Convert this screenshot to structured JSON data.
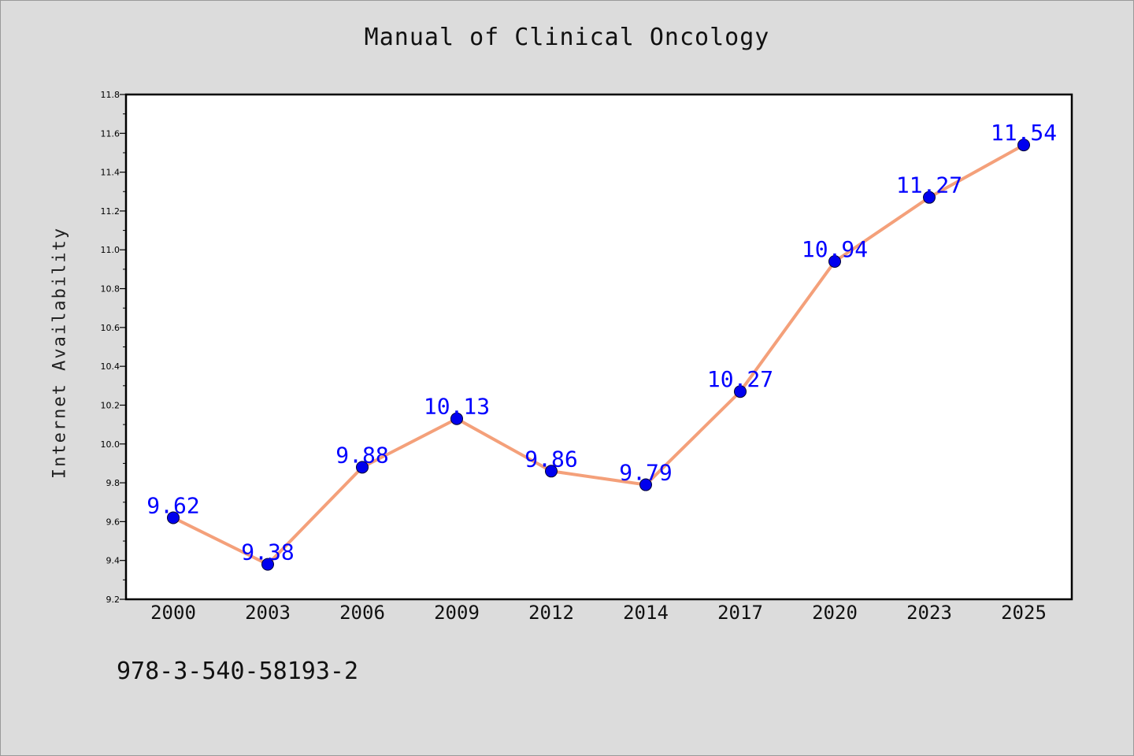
{
  "figure": {
    "title": "Manual of Clinical Oncology",
    "identifier": "978-3-540-58193-2"
  },
  "colors": {
    "background": "#dcdcdc",
    "plot_background": "#ffffff",
    "line": "#f4a07a",
    "marker": "#0000ee",
    "data_label": "#0000ff"
  },
  "chart_data": {
    "type": "line",
    "title": "Manual of Clinical Oncology",
    "xlabel": "",
    "ylabel": "Internet Availability",
    "categories": [
      "2000",
      "2003",
      "2006",
      "2009",
      "2012",
      "2014",
      "2017",
      "2020",
      "2023",
      "2025"
    ],
    "series": [
      {
        "values": [
          9.62,
          9.38,
          9.88,
          10.13,
          9.86,
          9.79,
          10.27,
          10.94,
          11.27,
          11.54
        ],
        "data_labels": [
          "9.62",
          "9.38",
          "9.88",
          "10.13",
          "9.86",
          "9.79",
          "10.27",
          "10.94",
          "11.27",
          "11.54"
        ]
      }
    ],
    "ylim": [
      9.2,
      11.8
    ],
    "y_ticks": [
      "9.2",
      "9.4",
      "9.6",
      "9.8",
      "10.0",
      "10.2",
      "10.4",
      "10.6",
      "10.8",
      "11.0",
      "11.2",
      "11.4",
      "11.6",
      "11.8"
    ],
    "grid": false,
    "legend": "none"
  }
}
